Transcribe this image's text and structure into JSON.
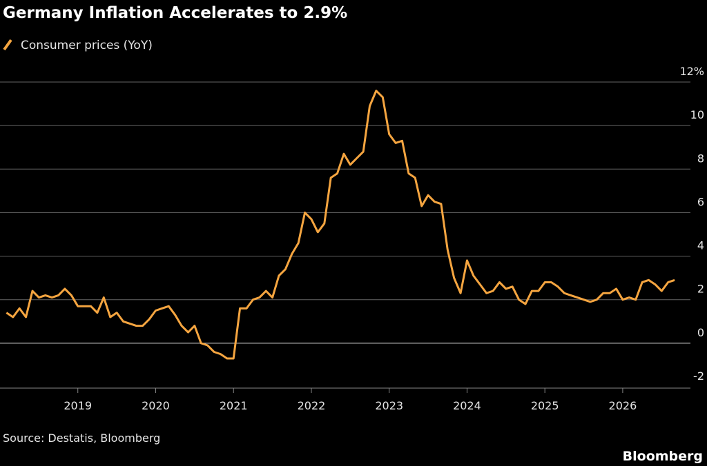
{
  "chart_data": {
    "type": "line",
    "title": "Germany Inflation Accelerates to 2.9%",
    "x": [
      2018.083,
      2018.167,
      2018.25,
      2018.333,
      2018.417,
      2018.5,
      2018.583,
      2018.667,
      2018.75,
      2018.833,
      2018.917,
      2019,
      2019.083,
      2019.167,
      2019.25,
      2019.333,
      2019.417,
      2019.5,
      2019.583,
      2019.667,
      2019.75,
      2019.833,
      2019.917,
      2020,
      2020.083,
      2020.167,
      2020.25,
      2020.333,
      2020.417,
      2020.5,
      2020.583,
      2020.667,
      2020.75,
      2020.833,
      2020.917,
      2021,
      2021.083,
      2021.167,
      2021.25,
      2021.333,
      2021.417,
      2021.5,
      2021.583,
      2021.667,
      2021.75,
      2021.833,
      2021.917,
      2022,
      2022.083,
      2022.167,
      2022.25,
      2022.333,
      2022.417,
      2022.5,
      2022.583,
      2022.667,
      2022.75,
      2022.833,
      2022.917,
      2023,
      2023.083,
      2023.167,
      2023.25,
      2023.333,
      2023.417,
      2023.5,
      2023.583,
      2023.667,
      2023.75,
      2023.833,
      2023.917,
      2024,
      2024.083,
      2024.167,
      2024.25,
      2024.333,
      2024.417,
      2024.5,
      2024.583,
      2024.667,
      2024.75,
      2024.833,
      2024.917,
      2025,
      2025.083,
      2025.167,
      2025.25,
      2025.333,
      2025.417,
      2025.5,
      2025.583,
      2025.667,
      2025.75,
      2025.833,
      2025.917,
      2026,
      2026.083,
      2026.167,
      2026.25,
      2026.333,
      2026.417,
      2026.5,
      2026.583,
      2026.667
    ],
    "series": [
      {
        "name": "Consumer prices (YoY)",
        "color": "#f5a540",
        "values": [
          1.4,
          1.2,
          1.6,
          1.2,
          2.4,
          2.1,
          2.2,
          2.1,
          2.2,
          2.5,
          2.2,
          1.7,
          1.7,
          1.7,
          1.4,
          2.1,
          1.2,
          1.4,
          1.0,
          0.9,
          0.8,
          0.8,
          1.1,
          1.5,
          1.6,
          1.7,
          1.3,
          0.8,
          0.5,
          0.8,
          0.0,
          -0.1,
          -0.4,
          -0.5,
          -0.7,
          -0.7,
          1.6,
          1.6,
          2.0,
          2.1,
          2.4,
          2.1,
          3.1,
          3.4,
          4.1,
          4.6,
          6.0,
          5.7,
          5.1,
          5.5,
          7.6,
          7.8,
          8.7,
          8.2,
          8.5,
          8.8,
          10.9,
          11.6,
          11.3,
          9.6,
          9.2,
          9.3,
          7.8,
          7.6,
          6.3,
          6.8,
          6.5,
          6.4,
          4.3,
          3.0,
          2.3,
          3.8,
          3.1,
          2.7,
          2.3,
          2.4,
          2.8,
          2.5,
          2.6,
          2.0,
          1.8,
          2.4,
          2.4,
          2.8,
          2.8,
          2.6,
          2.3,
          2.2,
          2.1,
          2.0,
          1.9,
          2.0,
          2.3,
          2.3,
          2.5,
          2.0,
          2.1,
          2.0,
          2.8,
          2.9,
          2.7,
          2.4,
          2.8,
          2.9
        ]
      }
    ],
    "xlim": [
      2018,
      2026.87
    ],
    "xticks": [
      2019,
      2020,
      2021,
      2022,
      2023,
      2024,
      2025,
      2026
    ],
    "ylim": [
      -2,
      12
    ],
    "yticks": [
      -2,
      0,
      2,
      4,
      6,
      8,
      10,
      {
        "value": 12,
        "label": "12%"
      }
    ],
    "grid": true
  },
  "footer": {
    "source": "Source: Destatis, Bloomberg",
    "brand": "Bloomberg"
  }
}
